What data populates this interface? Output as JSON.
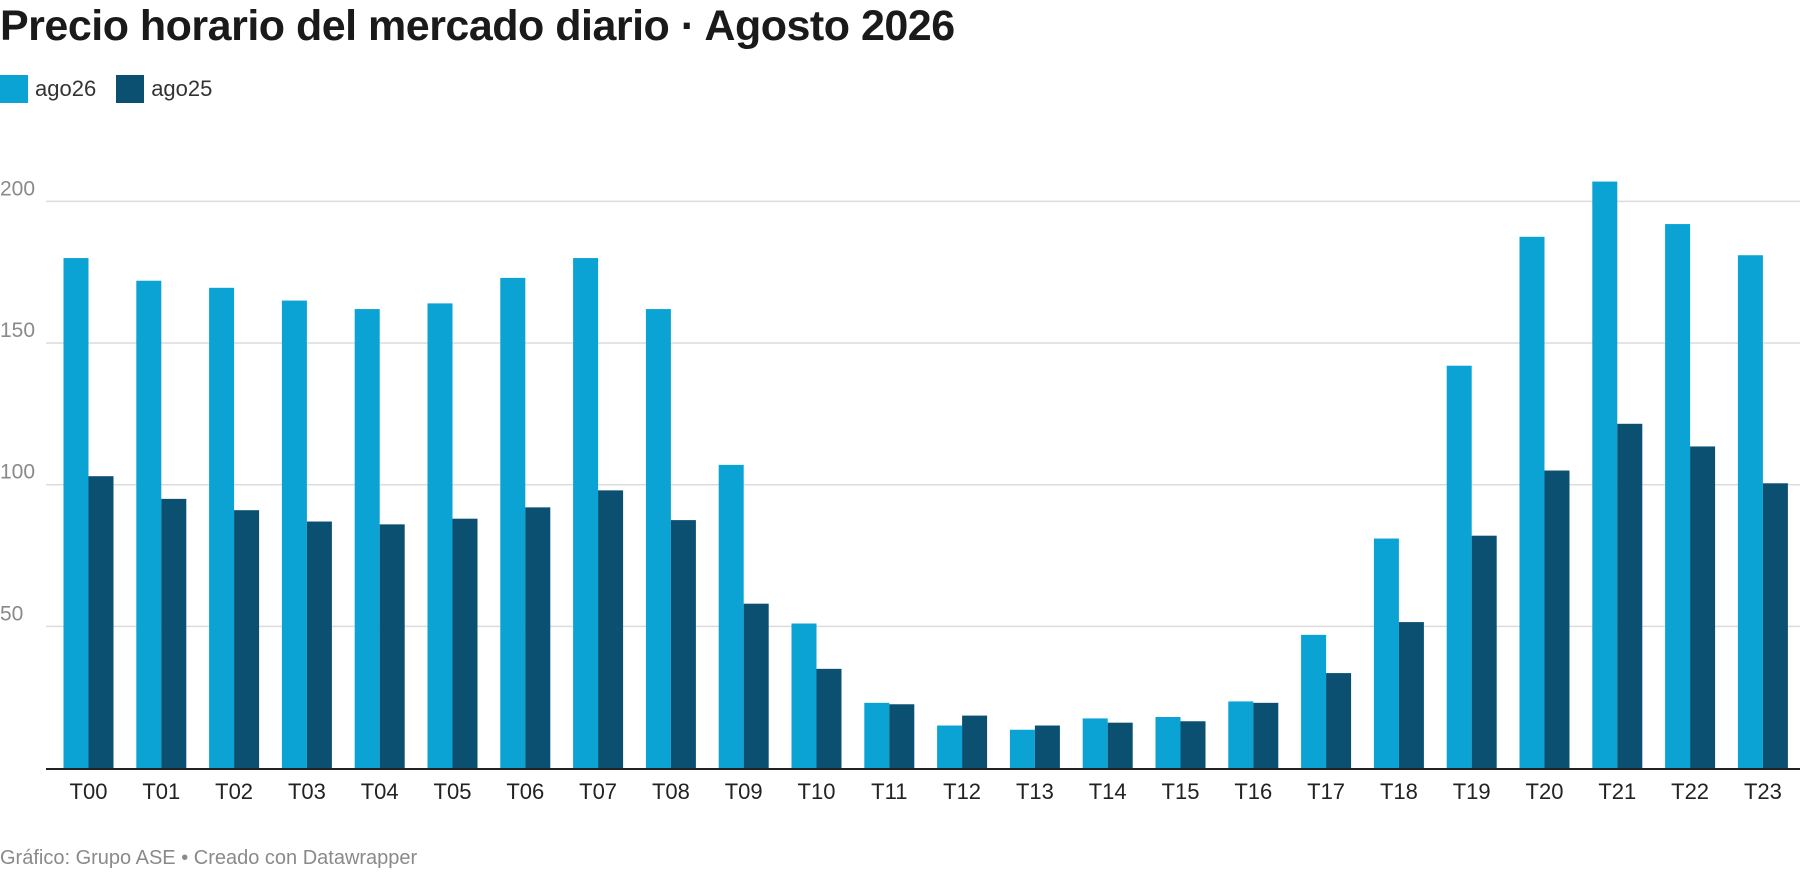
{
  "header": {
    "title": "Precio horario del mercado diario · Agosto 2026"
  },
  "legend": {
    "items": [
      {
        "label": "ago26",
        "color": "#0ba3d4"
      },
      {
        "label": "ago25",
        "color": "#0b4f71"
      }
    ]
  },
  "footer": {
    "credit": "Gráfico: Grupo ASE • Creado con Datawrapper"
  },
  "chart_data": {
    "type": "bar",
    "title": "Precio horario del mercado diario · Agosto 2026",
    "xlabel": "",
    "ylabel": "",
    "ylim": [
      0,
      215
    ],
    "yticks": [
      50,
      100,
      150,
      200
    ],
    "grid": true,
    "legend_position": "top-left",
    "categories": [
      "T00",
      "T01",
      "T02",
      "T03",
      "T04",
      "T05",
      "T06",
      "T07",
      "T08",
      "T09",
      "T10",
      "T11",
      "T12",
      "T13",
      "T14",
      "T15",
      "T16",
      "T17",
      "T18",
      "T19",
      "T20",
      "T21",
      "T22",
      "T23"
    ],
    "series": [
      {
        "name": "ago26",
        "color": "#0ba3d4",
        "values": [
          180,
          172,
          169.5,
          165,
          162,
          164,
          173,
          180,
          162,
          107,
          51,
          23,
          15,
          13.5,
          17.5,
          18,
          23.5,
          47,
          81,
          142,
          187.5,
          207,
          192,
          181
        ]
      },
      {
        "name": "ago25",
        "color": "#0b4f71",
        "values": [
          103,
          95,
          91,
          87,
          86,
          88,
          92,
          98,
          87.5,
          58,
          35,
          22.5,
          18.5,
          15,
          16,
          16.5,
          23,
          33.5,
          51.5,
          82,
          105,
          121.5,
          113.5,
          100.5
        ]
      }
    ]
  }
}
